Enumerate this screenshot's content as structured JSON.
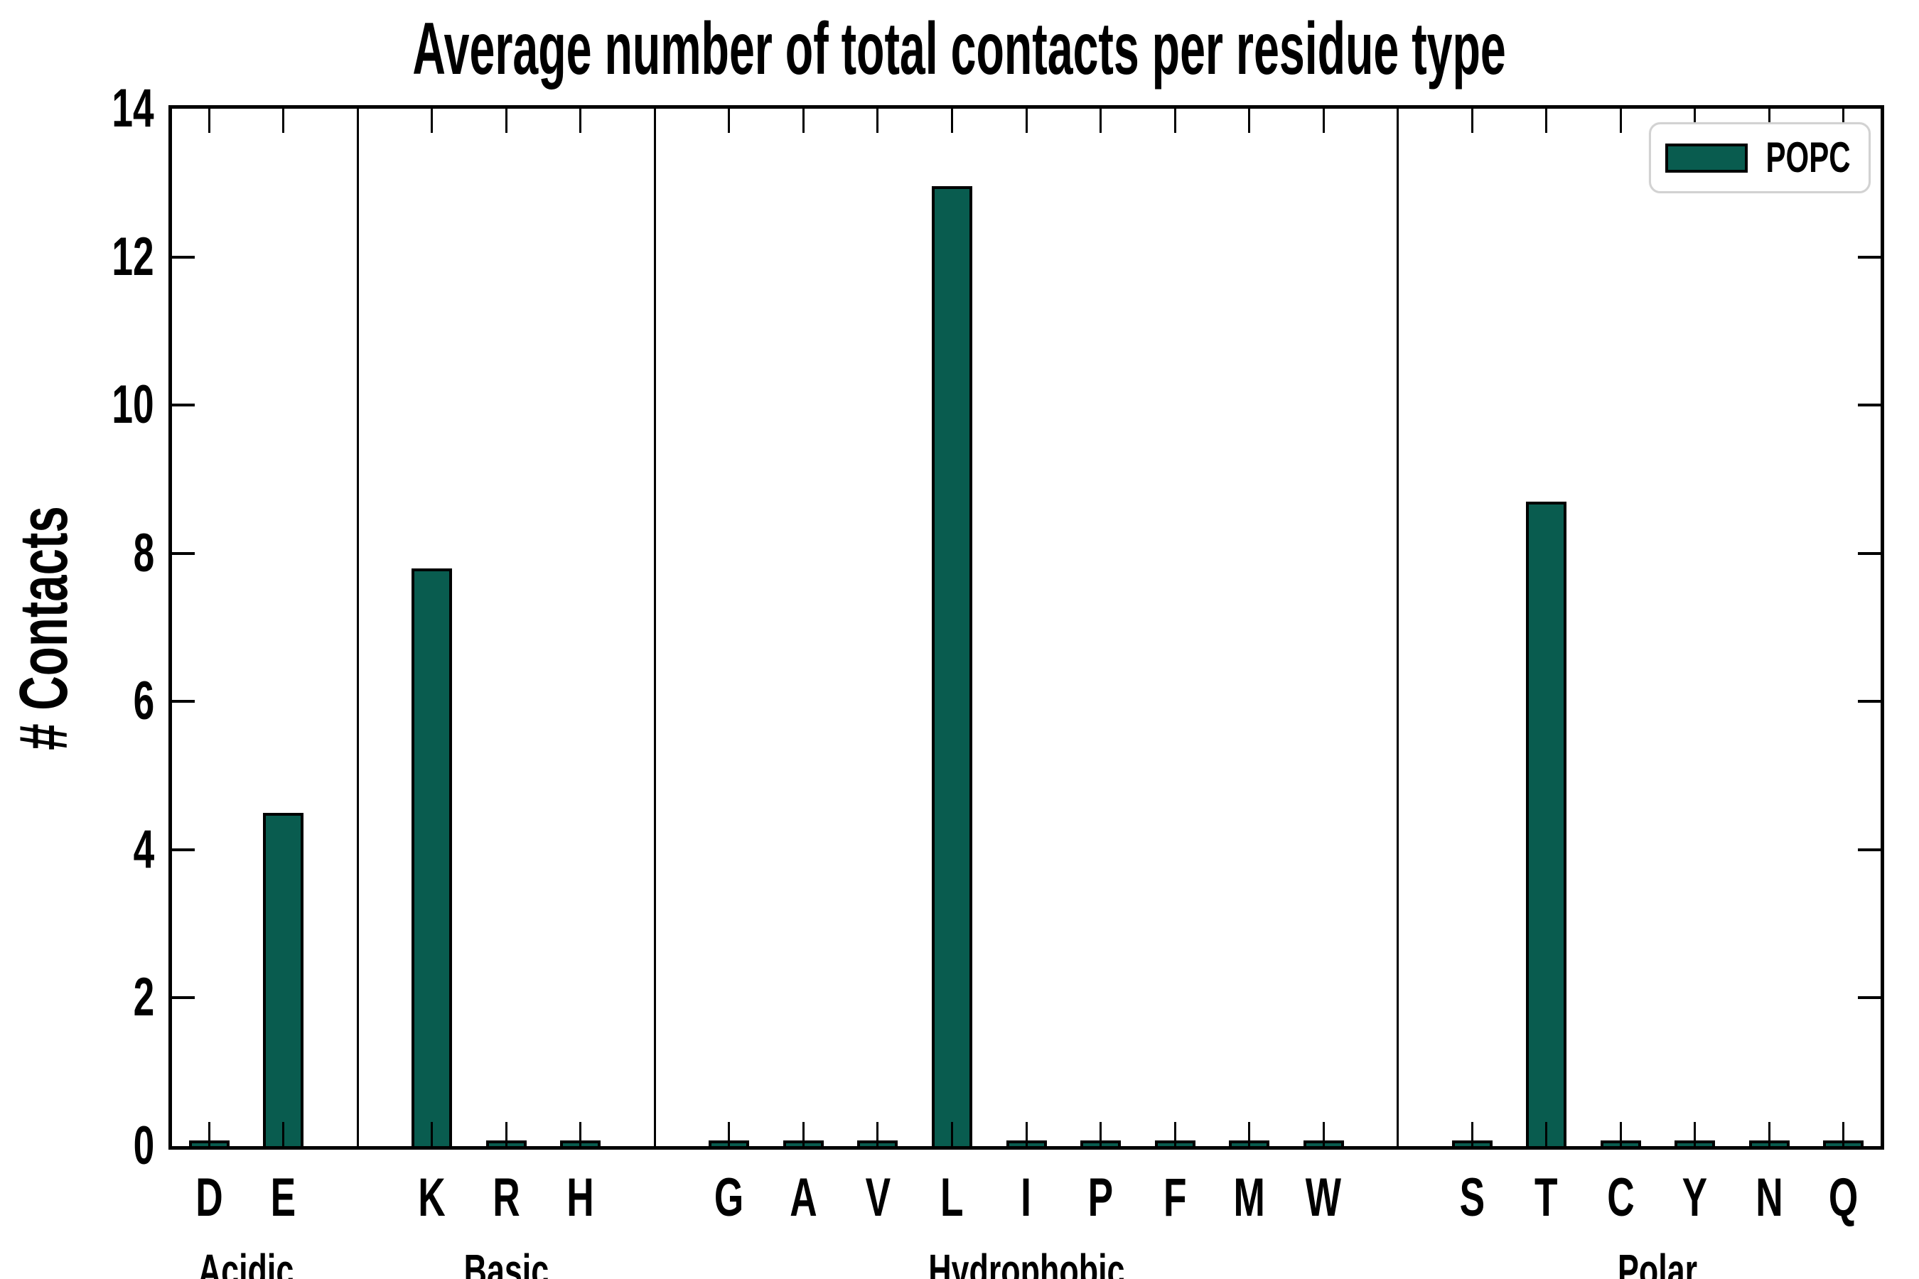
{
  "chart_data": {
    "type": "bar",
    "title": "Average number of total contacts per residue type",
    "xlabel": "",
    "ylabel": "# Contacts",
    "ylim": [
      0,
      14
    ],
    "yticks": [
      0,
      2,
      4,
      6,
      8,
      10,
      12,
      14
    ],
    "grid": false,
    "legend": [
      "POPC"
    ],
    "legend_position": "upper right",
    "bar_color": "#095C4F",
    "bar_edge_color": "#000000",
    "group_separator_color": "#000000",
    "groups": [
      {
        "label": "Acidic",
        "categories": [
          "D",
          "E"
        ],
        "values": [
          0.05,
          4.5
        ]
      },
      {
        "label": "Basic",
        "categories": [
          "K",
          "R",
          "H"
        ],
        "values": [
          7.8,
          0.05,
          0.05
        ]
      },
      {
        "label": "Hydrophobic",
        "categories": [
          "G",
          "A",
          "V",
          "L",
          "I",
          "P",
          "F",
          "M",
          "W"
        ],
        "values": [
          0.05,
          0.05,
          0.05,
          12.95,
          0.05,
          0.05,
          0.05,
          0.05,
          0.05
        ]
      },
      {
        "label": "Polar",
        "categories": [
          "S",
          "T",
          "C",
          "Y",
          "N",
          "Q"
        ],
        "values": [
          0.05,
          8.7,
          0.05,
          0.05,
          0.05,
          0.05
        ]
      }
    ]
  }
}
